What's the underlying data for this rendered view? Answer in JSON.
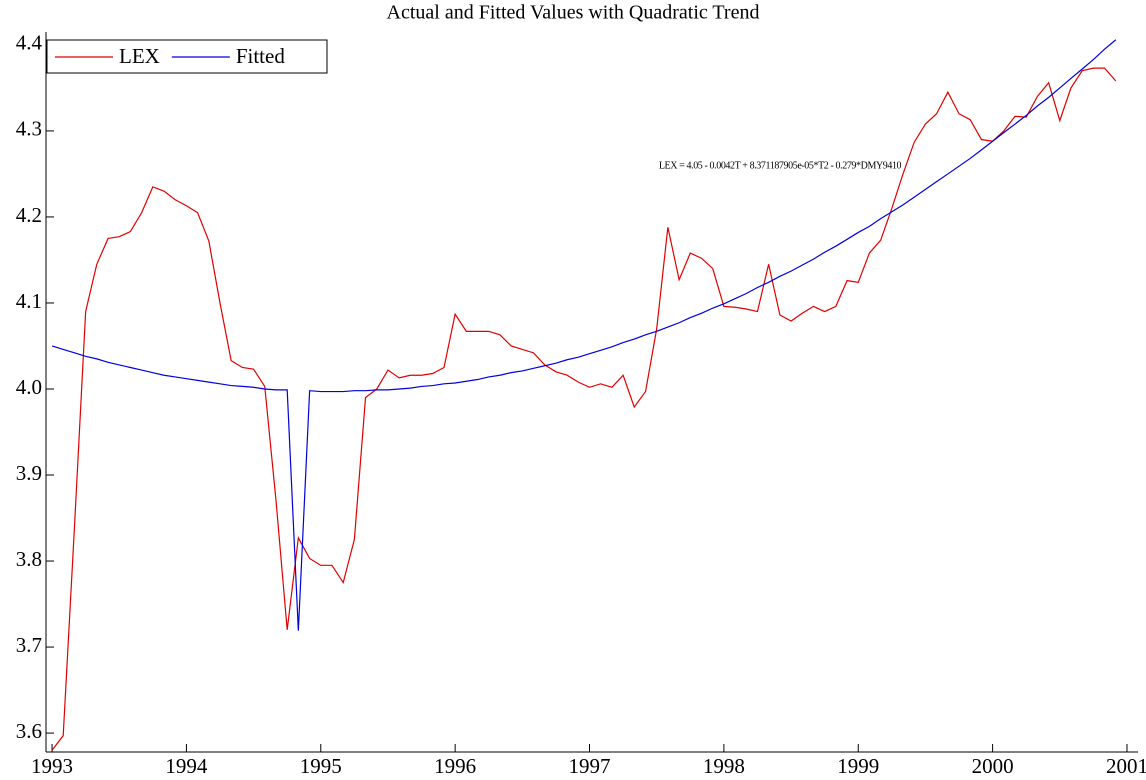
{
  "chart_data": {
    "type": "line",
    "title": "Actual and Fitted Values with Quadratic Trend",
    "annotation": "LEX = 4.05 - 0.0042T + 8.371187905e-05*T2 - 0.279*DMY9410",
    "x": [
      1993,
      1993.083,
      1993.167,
      1993.25,
      1993.333,
      1993.417,
      1993.5,
      1993.583,
      1993.667,
      1993.75,
      1993.833,
      1993.917,
      1994,
      1994.083,
      1994.167,
      1994.25,
      1994.333,
      1994.417,
      1994.5,
      1994.583,
      1994.667,
      1994.75,
      1994.833,
      1994.917,
      1995,
      1995.083,
      1995.167,
      1995.25,
      1995.333,
      1995.417,
      1995.5,
      1995.583,
      1995.667,
      1995.75,
      1995.833,
      1995.917,
      1996,
      1996.083,
      1996.167,
      1996.25,
      1996.333,
      1996.417,
      1996.5,
      1996.583,
      1996.667,
      1996.75,
      1996.833,
      1996.917,
      1997,
      1997.083,
      1997.167,
      1997.25,
      1997.333,
      1997.417,
      1997.5,
      1997.583,
      1997.667,
      1997.75,
      1997.833,
      1997.917,
      1998,
      1998.083,
      1998.167,
      1998.25,
      1998.333,
      1998.417,
      1998.5,
      1998.583,
      1998.667,
      1998.75,
      1998.833,
      1998.917,
      1999,
      1999.083,
      1999.167,
      1999.25,
      1999.333,
      1999.417,
      1999.5,
      1999.583,
      1999.667,
      1999.75,
      1999.833,
      1999.917,
      2000,
      2000.083,
      2000.167,
      2000.25,
      2000.333,
      2000.417,
      2000.5,
      2000.583,
      2000.667,
      2000.75,
      2000.833,
      2000.917
    ],
    "series": [
      {
        "name": "LEX",
        "color": "#e00000",
        "values": [
          3.58,
          3.597,
          3.84,
          4.09,
          4.145,
          4.175,
          4.177,
          4.183,
          4.205,
          4.235,
          4.23,
          4.22,
          4.213,
          4.205,
          4.172,
          4.1,
          4.033,
          4.025,
          4.023,
          4.003,
          3.87,
          3.72,
          3.827,
          3.803,
          3.795,
          3.795,
          3.775,
          3.825,
          3.99,
          4.0,
          4.022,
          4.013,
          4.016,
          4.016,
          4.018,
          4.025,
          4.087,
          4.067,
          4.067,
          4.067,
          4.063,
          4.05,
          4.046,
          4.042,
          4.028,
          4.02,
          4.016,
          4.008,
          4.002,
          4.006,
          4.002,
          4.016,
          3.979,
          3.997,
          4.07,
          4.188,
          4.127,
          4.158,
          4.152,
          4.14,
          4.096,
          4.095,
          4.093,
          4.09,
          4.145,
          4.086,
          4.079,
          4.088,
          4.096,
          4.09,
          4.096,
          4.126,
          4.124,
          4.158,
          4.173,
          4.21,
          4.25,
          4.287,
          4.308,
          4.32,
          4.345,
          4.32,
          4.313,
          4.29,
          4.288,
          4.3,
          4.317,
          4.316,
          4.34,
          4.356,
          4.312,
          4.35,
          4.37,
          4.373,
          4.373,
          4.358
        ]
      },
      {
        "name": "Fitted",
        "color": "#0000e0",
        "values": [
          4.05,
          4.046,
          4.042,
          4.038,
          4.035,
          4.031,
          4.028,
          4.025,
          4.022,
          4.019,
          4.016,
          4.014,
          4.012,
          4.01,
          4.008,
          4.006,
          4.004,
          4.003,
          4.002,
          4.0,
          3.999,
          3.999,
          3.719,
          3.998,
          3.997,
          3.997,
          3.997,
          3.998,
          3.998,
          3.999,
          3.999,
          4.0,
          4.001,
          4.003,
          4.004,
          4.006,
          4.007,
          4.009,
          4.011,
          4.014,
          4.016,
          4.019,
          4.021,
          4.024,
          4.027,
          4.03,
          4.034,
          4.037,
          4.041,
          4.045,
          4.049,
          4.054,
          4.058,
          4.063,
          4.067,
          4.072,
          4.077,
          4.083,
          4.088,
          4.094,
          4.099,
          4.105,
          4.111,
          4.118,
          4.124,
          4.131,
          4.137,
          4.144,
          4.151,
          4.159,
          4.166,
          4.174,
          4.182,
          4.189,
          4.198,
          4.206,
          4.214,
          4.223,
          4.232,
          4.241,
          4.25,
          4.259,
          4.268,
          4.278,
          4.288,
          4.298,
          4.308,
          4.318,
          4.329,
          4.339,
          4.35,
          4.361,
          4.372,
          4.383,
          4.395,
          4.406
        ]
      }
    ],
    "xlim": [
      1992.955,
      2001.082
    ],
    "ylim": [
      3.578,
      4.415
    ],
    "xticks": [
      1993,
      1994,
      1995,
      1996,
      1997,
      1998,
      1999,
      2000,
      2001
    ],
    "yticks": [
      {
        "value": 3.6,
        "label": "3.6"
      },
      {
        "value": 3.7,
        "label": "3.7"
      },
      {
        "value": 3.8,
        "label": "3.8"
      },
      {
        "value": 3.9,
        "label": "3.9"
      },
      {
        "value": 4.0,
        "label": "4.0"
      },
      {
        "value": 4.1,
        "label": "4.1"
      },
      {
        "value": 4.2,
        "label": "4.2"
      },
      {
        "value": 4.3,
        "label": "4.3"
      },
      {
        "value": 4.4,
        "label": "4.4"
      }
    ],
    "legend": "top-left"
  }
}
